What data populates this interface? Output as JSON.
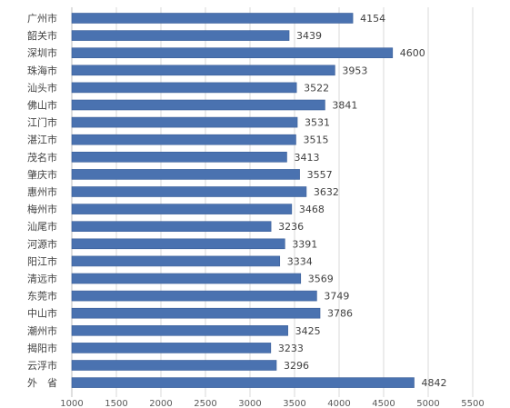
{
  "chart_data": {
    "type": "bar",
    "orientation": "horizontal",
    "categories": [
      "广州市",
      "韶关市",
      "深圳市",
      "珠海市",
      "汕头市",
      "佛山市",
      "江门市",
      "湛江市",
      "茂名市",
      "肇庆市",
      "惠州市",
      "梅州市",
      "汕尾市",
      "河源市",
      "阳江市",
      "清远市",
      "东莞市",
      "中山市",
      "潮州市",
      "揭阳市",
      "云浮市",
      "外　省"
    ],
    "values": [
      4154,
      3439,
      4600,
      3953,
      3522,
      3841,
      3531,
      3515,
      3413,
      3557,
      3632,
      3468,
      3236,
      3391,
      3334,
      3569,
      3749,
      3786,
      3425,
      3233,
      3296,
      4842
    ],
    "xlim": [
      1000,
      5500
    ],
    "xticks": [
      1000,
      1500,
      2000,
      2500,
      3000,
      3500,
      4000,
      4500,
      5000,
      5500
    ],
    "title": "",
    "xlabel": "",
    "ylabel": "",
    "grid": true,
    "colors": {
      "bar": "#4a72b0",
      "bar_edge": "#3b5f99",
      "grid": "#d9d9d9"
    }
  }
}
